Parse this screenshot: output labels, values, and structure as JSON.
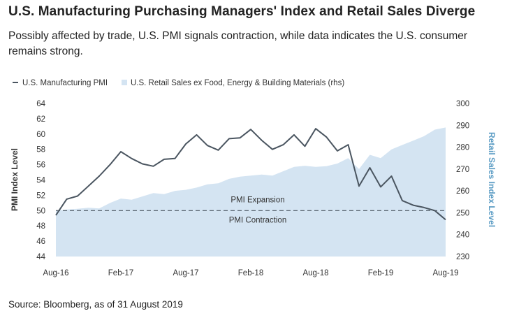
{
  "header": {
    "title": "U.S. Manufacturing Purchasing Managers' Index and Retail Sales Diverge",
    "subtitle": "Possibly affected by trade, U.S. PMI signals contraction, while data indicates the U.S. consumer remains strong."
  },
  "footer": {
    "source": "Source: Bloomberg, as of 31 August 2019"
  },
  "colors": {
    "pmi_line": "#4a5560",
    "retail_area": "#d4e4f2",
    "right_axis": "#5b9cc4",
    "text": "#333333",
    "dashed": "#4a5560"
  },
  "chart_data": {
    "type": "line",
    "legend": {
      "position": "top-left",
      "items": [
        {
          "label": "U.S. Manufacturing PMI",
          "marker": "line"
        },
        {
          "label": "U.S. Retail Sales ex Food, Energy & Building Materials (rhs)",
          "marker": "area"
        }
      ]
    },
    "x_tick_labels": [
      "Aug-16",
      "Feb-17",
      "Aug-17",
      "Feb-18",
      "Aug-18",
      "Feb-19",
      "Aug-19"
    ],
    "x": [
      "Aug-16",
      "Sep-16",
      "Oct-16",
      "Nov-16",
      "Dec-16",
      "Jan-17",
      "Feb-17",
      "Mar-17",
      "Apr-17",
      "May-17",
      "Jun-17",
      "Jul-17",
      "Aug-17",
      "Sep-17",
      "Oct-17",
      "Nov-17",
      "Dec-17",
      "Jan-18",
      "Feb-18",
      "Mar-18",
      "Apr-18",
      "May-18",
      "Jun-18",
      "Jul-18",
      "Aug-18",
      "Sep-18",
      "Oct-18",
      "Nov-18",
      "Dec-18",
      "Jan-19",
      "Feb-19",
      "Mar-19",
      "Apr-19",
      "May-19",
      "Jun-19",
      "Jul-19",
      "Aug-19"
    ],
    "ylabel": "PMI Index Level",
    "y2label": "Retail Sales Index Level",
    "ylim": [
      44,
      64
    ],
    "y_ticks": [
      44,
      46,
      48,
      50,
      52,
      54,
      56,
      58,
      60,
      62,
      64
    ],
    "y2lim": [
      230,
      300
    ],
    "y2_ticks": [
      230,
      240,
      250,
      260,
      270,
      280,
      290,
      300
    ],
    "grid": false,
    "series": [
      {
        "name": "U.S. Manufacturing PMI",
        "axis": "left",
        "values": [
          49.4,
          51.5,
          51.9,
          53.2,
          54.5,
          56.0,
          57.7,
          56.8,
          56.1,
          55.8,
          56.7,
          56.8,
          58.7,
          59.9,
          58.5,
          57.9,
          59.4,
          59.5,
          60.6,
          59.2,
          58.0,
          58.6,
          59.9,
          58.4,
          60.7,
          59.6,
          57.8,
          58.6,
          53.2,
          55.6,
          53.1,
          54.5,
          51.3,
          50.7,
          50.4,
          50.0,
          48.8
        ]
      },
      {
        "name": "U.S. Retail Sales ex Food, Energy & Building Materials (rhs)",
        "axis": "right",
        "type": "area",
        "values": [
          251.0,
          251.5,
          251.8,
          252.3,
          252.0,
          254.5,
          256.5,
          256.0,
          257.5,
          259.0,
          258.5,
          260.0,
          260.5,
          261.5,
          263.0,
          263.5,
          265.5,
          266.5,
          267.0,
          267.5,
          267.0,
          269.0,
          271.0,
          271.5,
          271.0,
          271.3,
          272.5,
          275.0,
          270.0,
          276.5,
          275.0,
          279.0,
          281.0,
          283.0,
          285.0,
          288.0,
          289.0
        ]
      }
    ],
    "reference_lines": [
      {
        "axis": "left",
        "y": 50,
        "style": "dashed",
        "label_above": "PMI Expansion",
        "label_below": "PMI Contraction"
      }
    ]
  }
}
